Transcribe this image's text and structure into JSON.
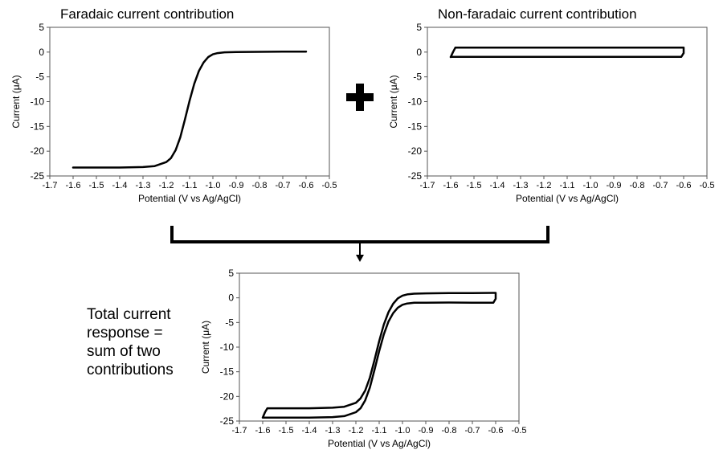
{
  "figure": {
    "title_faradaic": "Faradaic current contribution",
    "title_nonfaradaic": "Non-faradaic current contribution",
    "total_text_lines": [
      "Total current",
      "response =",
      "sum of two",
      "contributions"
    ],
    "plus_symbol": "plus-icon",
    "arrow_symbol": "down-arrow-icon"
  },
  "chart_data": [
    {
      "id": "faradaic",
      "type": "line",
      "title": "Faradaic current contribution",
      "xlabel": "Potential (V vs Ag/AgCl)",
      "ylabel": "Current (μA)",
      "xlim": [
        -1.7,
        -0.5
      ],
      "ylim": [
        -25,
        5
      ],
      "xticks": [
        -1.7,
        -1.6,
        -1.5,
        -1.4,
        -1.3,
        -1.2,
        -1.1,
        -1.0,
        -0.9,
        -0.8,
        -0.7,
        -0.6,
        -0.5
      ],
      "xtick_labels": [
        "-1.7",
        "-1.6",
        "-1.5",
        "-1.4",
        "-1.3",
        "-1.2",
        "-1.1",
        "-1.0",
        "-0.9",
        "-0.8",
        "-0.7",
        "-0.6",
        "-0.5"
      ],
      "yticks": [
        5,
        0,
        -5,
        -10,
        -15,
        -20,
        -25
      ],
      "ytick_labels": [
        "5",
        "0",
        "-5",
        "-10",
        "-15",
        "-20",
        "-25"
      ],
      "grid": false,
      "series": [
        {
          "x": [
            -1.6,
            -1.4,
            -1.3,
            -1.25,
            -1.2,
            -1.18,
            -1.16,
            -1.14,
            -1.12,
            -1.1,
            -1.08,
            -1.06,
            -1.04,
            -1.02,
            -1.0,
            -0.98,
            -0.95,
            -0.9,
            -0.8,
            -0.7,
            -0.6
          ],
          "y": [
            -23.3,
            -23.3,
            -23.2,
            -23.0,
            -22.2,
            -21.4,
            -19.8,
            -17.2,
            -13.6,
            -9.8,
            -6.4,
            -3.8,
            -2.1,
            -1.0,
            -0.45,
            -0.2,
            -0.05,
            0.0,
            0.05,
            0.08,
            0.1
          ]
        }
      ]
    },
    {
      "id": "nonfaradaic",
      "type": "line",
      "title": "Non-faradaic current contribution",
      "xlabel": "Potential (V vs Ag/AgCl)",
      "ylabel": "Current (μA)",
      "xlim": [
        -1.7,
        -0.5
      ],
      "ylim": [
        -25,
        5
      ],
      "xticks": [
        -1.7,
        -1.6,
        -1.5,
        -1.4,
        -1.3,
        -1.2,
        -1.1,
        -1.0,
        -0.9,
        -0.8,
        -0.7,
        -0.6,
        -0.5
      ],
      "xtick_labels": [
        "-1.7",
        "-1.6",
        "-1.5",
        "-1.4",
        "-1.3",
        "-1.2",
        "-1.1",
        "-1.0",
        "-0.9",
        "-0.8",
        "-0.7",
        "-0.6",
        "-0.5"
      ],
      "yticks": [
        5,
        0,
        -5,
        -10,
        -15,
        -20,
        -25
      ],
      "ytick_labels": [
        "5",
        "0",
        "-5",
        "-10",
        "-15",
        "-20",
        "-25"
      ],
      "grid": false,
      "series": [
        {
          "x": [
            -1.6,
            -1.59,
            -1.58,
            -0.62,
            -0.61,
            -0.6,
            -0.6,
            -0.61,
            -1.6
          ],
          "y": [
            -1.0,
            0.0,
            0.9,
            0.9,
            0.9,
            0.9,
            -0.2,
            -0.95,
            -0.95
          ]
        }
      ]
    },
    {
      "id": "total",
      "type": "line",
      "title": "",
      "xlabel": "Potential (V vs Ag/AgCl)",
      "ylabel": "Current (μA)",
      "xlim": [
        -1.7,
        -0.5
      ],
      "ylim": [
        -25,
        5
      ],
      "xticks": [
        -1.7,
        -1.6,
        -1.5,
        -1.4,
        -1.3,
        -1.2,
        -1.1,
        -1.0,
        -0.9,
        -0.8,
        -0.7,
        -0.6,
        -0.5
      ],
      "xtick_labels": [
        "-1.7",
        "-1.6",
        "-1.5",
        "-1.4",
        "-1.3",
        "-1.2",
        "-1.1",
        "-1.0",
        "-0.9",
        "-0.8",
        "-0.7",
        "-0.6",
        "-0.5"
      ],
      "yticks": [
        5,
        0,
        -5,
        -10,
        -15,
        -20,
        -25
      ],
      "ytick_labels": [
        "5",
        "0",
        "-5",
        "-10",
        "-15",
        "-20",
        "-25"
      ],
      "grid": false,
      "series": [
        {
          "x": [
            -1.6,
            -1.59,
            -1.58,
            -1.4,
            -1.3,
            -1.25,
            -1.2,
            -1.18,
            -1.16,
            -1.14,
            -1.12,
            -1.1,
            -1.08,
            -1.06,
            -1.04,
            -1.02,
            -1.0,
            -0.98,
            -0.95,
            -0.9,
            -0.8,
            -0.7,
            -0.61,
            -0.6,
            -0.6,
            -0.61,
            -0.7,
            -0.8,
            -0.9,
            -0.95,
            -0.98,
            -1.0,
            -1.02,
            -1.04,
            -1.06,
            -1.08,
            -1.1,
            -1.12,
            -1.14,
            -1.16,
            -1.18,
            -1.2,
            -1.25,
            -1.3,
            -1.4,
            -1.6
          ],
          "y": [
            -24.3,
            -23.2,
            -22.4,
            -22.4,
            -22.3,
            -22.1,
            -21.3,
            -20.4,
            -18.8,
            -16.2,
            -12.6,
            -8.8,
            -5.4,
            -2.9,
            -1.2,
            -0.1,
            0.45,
            0.7,
            0.85,
            0.9,
            0.95,
            0.98,
            1.0,
            1.0,
            -0.2,
            -1.0,
            -0.98,
            -0.95,
            -1.0,
            -1.0,
            -1.15,
            -1.4,
            -2.0,
            -3.1,
            -4.8,
            -7.4,
            -10.8,
            -14.6,
            -18.2,
            -20.8,
            -22.4,
            -23.2,
            -24.0,
            -24.2,
            -24.3,
            -24.3
          ]
        }
      ]
    }
  ]
}
